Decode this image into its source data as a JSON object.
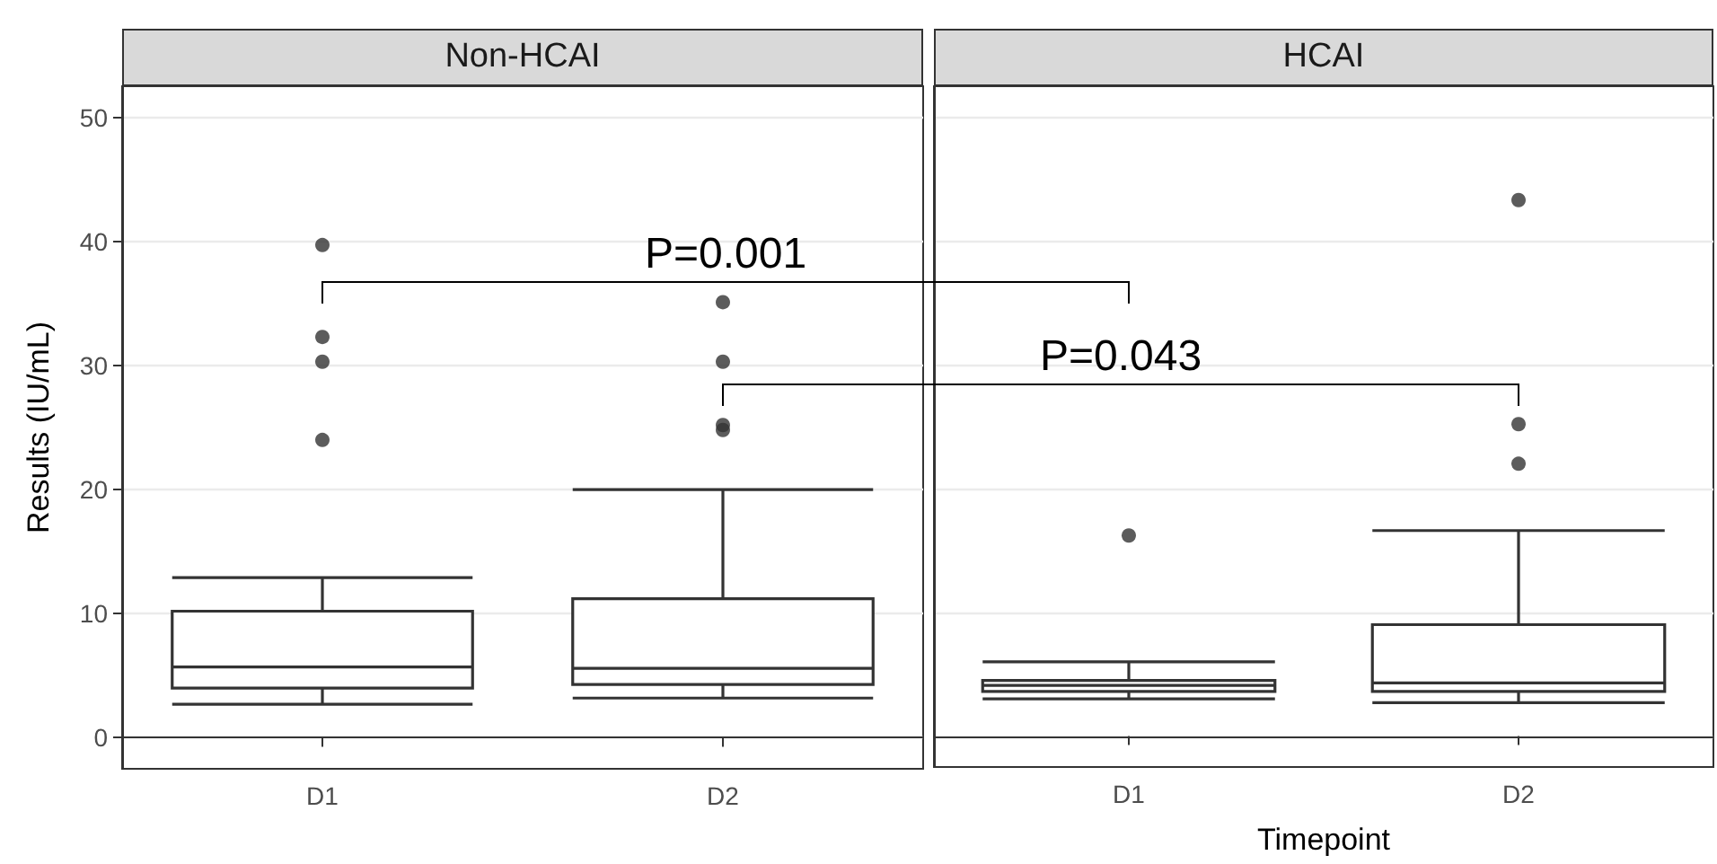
{
  "chart_data": [
    {
      "type": "box",
      "title": "Non-HCAI",
      "ylabel": "Results (IU/mL)",
      "categories": [
        "D1",
        "D2"
      ],
      "ylim": [
        -2.5,
        52.5
      ],
      "yticks": [
        0,
        10,
        20,
        30,
        40,
        50
      ],
      "grid": "y",
      "series": [
        {
          "color": "#333333",
          "boxes": [
            {
              "low": 2.7,
              "q1": 4.0,
              "median": 5.7,
              "q3": 10.2,
              "high": 12.9,
              "outliers": [
                39.7,
                32.3,
                30.3,
                24.0
              ]
            },
            {
              "low": 3.2,
              "q1": 4.3,
              "median": 5.6,
              "q3": 11.2,
              "high": 20.0,
              "outliers": [
                35.1,
                30.3,
                25.2,
                24.8
              ]
            }
          ]
        }
      ],
      "annotations": [
        "P=0.001",
        "P=0.043"
      ]
    },
    {
      "type": "box",
      "title": "HCAI",
      "xlabel": "Timepoint",
      "categories": [
        "D1",
        "D2"
      ],
      "ylim": [
        -2.5,
        52.5
      ],
      "yticks": [
        0,
        10,
        20,
        30,
        40,
        50
      ],
      "grid": "y",
      "tick_labels": "x",
      "series": [
        {
          "color": "#333333",
          "boxes": [
            {
              "low": 3.0,
              "q1": 3.6,
              "median": 4.1,
              "q3": 4.5,
              "high": 6.0,
              "outliers": [
                16.2
              ]
            },
            {
              "low": 2.7,
              "q1": 3.6,
              "median": 4.3,
              "q3": 9.0,
              "high": 16.6,
              "outliers": [
                43.3,
                25.2,
                22.0
              ]
            }
          ]
        }
      ]
    }
  ]
}
